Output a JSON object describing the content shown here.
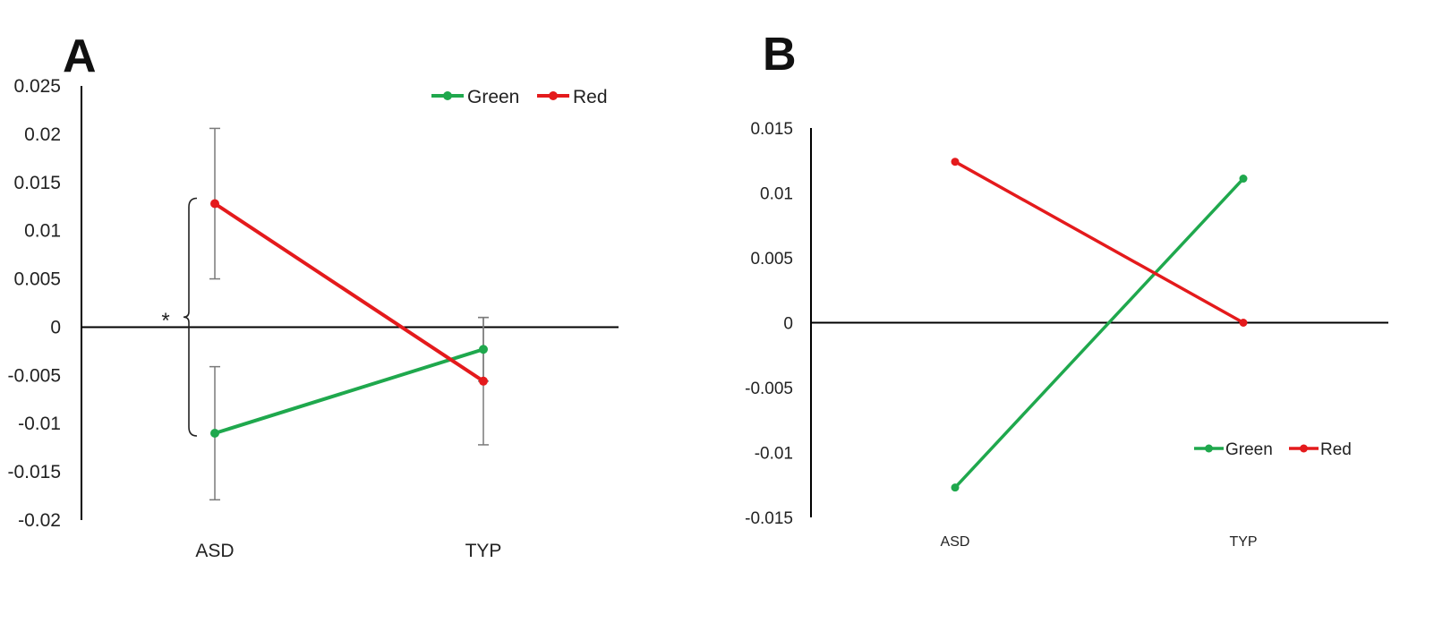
{
  "chart_data": [
    {
      "panel_label": "A",
      "type": "line",
      "categories": [
        "ASD",
        "TYP"
      ],
      "ylim": [
        -0.02,
        0.025
      ],
      "yticks": [
        0.025,
        0.02,
        0.015,
        0.01,
        0.005,
        0,
        -0.005,
        -0.01,
        -0.015,
        -0.02
      ],
      "ytick_labels": [
        "0.025",
        "0.02",
        "0.015",
        "0.01",
        "0.005",
        "0",
        "-0.005",
        "-0.01",
        "-0.015",
        "-0.02"
      ],
      "legend_position": "top-right",
      "series": [
        {
          "name": "Green",
          "color": "#1fa84d",
          "values": [
            -0.011,
            -0.0023
          ],
          "error": [
            0.0069,
            0.0033
          ]
        },
        {
          "name": "Red",
          "color": "#e41a1c",
          "values": [
            0.0128,
            -0.0056
          ],
          "error": [
            0.0078,
            0.0066
          ]
        }
      ],
      "annotation": {
        "text": "*",
        "between": [
          "Red",
          "Green"
        ],
        "category": "ASD"
      }
    },
    {
      "panel_label": "B",
      "type": "line",
      "categories": [
        "ASD",
        "TYP"
      ],
      "ylim": [
        -0.015,
        0.015
      ],
      "yticks": [
        0.015,
        0.01,
        0.005,
        0,
        -0.005,
        -0.01,
        -0.015
      ],
      "ytick_labels": [
        "0.015",
        "0.01",
        "0.005",
        "0",
        "-0.005",
        "-0.01",
        "-0.015"
      ],
      "legend_position": "bottom-right",
      "series": [
        {
          "name": "Green",
          "color": "#1fa84d",
          "values": [
            -0.0127,
            0.0111
          ]
        },
        {
          "name": "Red",
          "color": "#e41a1c",
          "values": [
            0.0124,
            0.0
          ]
        }
      ]
    }
  ]
}
